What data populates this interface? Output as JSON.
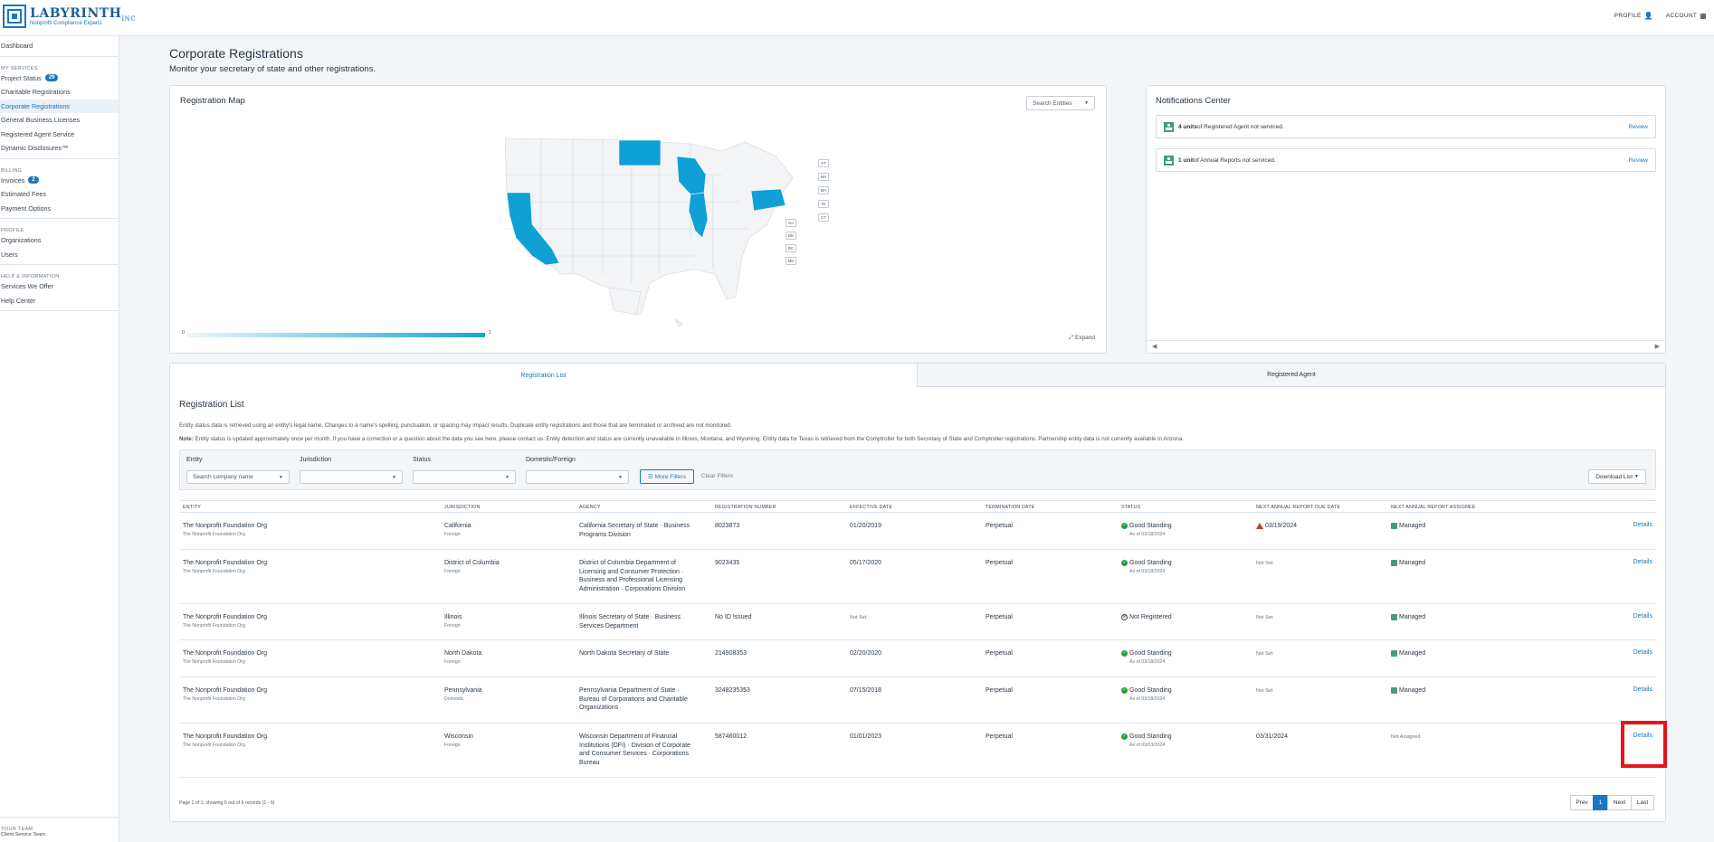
{
  "brand": {
    "name": "LABYRINTH",
    "suffix": "INC",
    "tagline": "Nonprofit Compliance Experts"
  },
  "topnav": {
    "profile": "PROFILE",
    "account": "ACCOUNT"
  },
  "sidebar": {
    "dashboard": "Dashboard",
    "my_services_label": "MY SERVICES",
    "services": [
      {
        "label": "Project Status",
        "badge": "29"
      },
      {
        "label": "Charitable Registrations"
      },
      {
        "label": "Corporate Registrations"
      },
      {
        "label": "General Business Licenses"
      },
      {
        "label": "Registered Agent Service"
      },
      {
        "label": "Dynamic Disclosures™"
      }
    ],
    "billing_label": "BILLING",
    "billing": [
      {
        "label": "Invoices",
        "badge": "2"
      },
      {
        "label": "Estimated Fees"
      },
      {
        "label": "Payment Options"
      }
    ],
    "profile_label": "PROFILE",
    "profile": [
      "Organizations",
      "Users"
    ],
    "help_label": "HELP & INFORMATION",
    "help": [
      "Services We Offer",
      "Help Center"
    ],
    "team_label": "YOUR TEAM",
    "team": "Client Service Team"
  },
  "page": {
    "title": "Corporate Registrations",
    "subtitle": "Monitor your secretary of state and other registrations."
  },
  "map": {
    "title": "Registration Map",
    "search_placeholder": "Search Entities",
    "highlighted_states": [
      "ND",
      "WI",
      "IL",
      "PA",
      "CA"
    ],
    "small_states_right": [
      "VT",
      "NH",
      "MA",
      "RI",
      "CT"
    ],
    "small_states_left": [
      "NJ",
      "DE",
      "DC",
      "MD"
    ],
    "scale_min": "0",
    "scale_max": "1",
    "expand": "Expand",
    "highlight_color": "#0fa0d6"
  },
  "notifications": {
    "title": "Notifications Center",
    "items": [
      {
        "strong": "4 units",
        "text": " of Registered Agent not serviced.",
        "action": "Review"
      },
      {
        "strong": "1 unit",
        "text": " of Annual Reports not serviced.",
        "action": "Review"
      }
    ]
  },
  "tabs": {
    "list": "Registration List",
    "agent": "Registered Agent"
  },
  "list": {
    "title": "Registration List",
    "info1": "Entity status data is retrieved using an entity's legal name. Changes to a name's spelling, punctuation, or spacing may impact results. Duplicate entity registrations and those that are terminated or archived are not monitored.",
    "note_label": "Note:",
    "info2": " Entity status is updated approximately once per month. If you have a correction or a question about the data you see here, please contact us. Entity detection and status are currently unavailable in Illinois, Montana, and Wyoming. Entity data for Texas is retrieved from the Comptroller for both Secretary of State and Comptroller registrations. Partnership entity data is not currently available in Arizona."
  },
  "filters": {
    "entity_label": "Entity",
    "entity_placeholder": "Search company name",
    "jurisdiction_label": "Jurisdiction",
    "status_label": "Status",
    "domestic_label": "Domestic/Foreign",
    "more": "More Filters",
    "clear": "Clear Filters",
    "download": "Download List"
  },
  "table": {
    "headers": [
      "ENTITY",
      "JURISDICTION",
      "AGENCY",
      "REGISTRATION NUMBER",
      "EFFECTIVE DATE",
      "TERMINATION DATE",
      "STATUS",
      "NEXT ANNUAL REPORT DUE DATE",
      "NEXT ANNUAL REPORT ASSIGNEE"
    ],
    "details_label": "Details",
    "rows": [
      {
        "entity": "The Nonprofit Foundation Org",
        "entity_sub": "The Nonprofit Foundation Org",
        "jurisdiction": "California",
        "type": "Foreign",
        "agency": [
          "California Secretary of State · Business",
          "Programs Division"
        ],
        "reg": "8023873",
        "effective": "01/20/2019",
        "termination": "Perpetual",
        "status": "Good Standing",
        "status_sub": "As of 03/18/2024",
        "due": "03/19/2024",
        "due_warn": true,
        "assignee": "Managed"
      },
      {
        "entity": "The Nonprofit Foundation Org",
        "entity_sub": "The Nonprofit Foundation Org",
        "jurisdiction": "District of Columbia",
        "type": "Foreign",
        "agency": [
          "District of Columbia Department of",
          "Licensing and Consumer Protection ·",
          "Business and Professional Licensing",
          "Administration · Corporations Division"
        ],
        "reg": "9023435",
        "effective": "05/17/2020",
        "termination": "Perpetual",
        "status": "Good Standing",
        "status_sub": "As of 03/18/2024",
        "due": "Not Set",
        "assignee": "Managed"
      },
      {
        "entity": "The Nonprofit Foundation Org",
        "entity_sub": "The Nonprofit Foundation Org",
        "jurisdiction": "Illinois",
        "type": "Foreign",
        "agency": [
          "Illinois Secretary of State · Business",
          "Services Department"
        ],
        "reg": "No ID Issued",
        "effective": "Not Set",
        "termination": "Perpetual",
        "status": "Not Registered",
        "status_sub": "",
        "due": "Not Set",
        "assignee": "Managed"
      },
      {
        "entity": "The Nonprofit Foundation Org",
        "entity_sub": "The Nonprofit Foundation Org",
        "jurisdiction": "North Dakota",
        "type": "Foreign",
        "agency": [
          "North Dakota Secretary of State"
        ],
        "reg": "214908353",
        "effective": "02/20/2020",
        "termination": "Perpetual",
        "status": "Good Standing",
        "status_sub": "As of 03/18/2024",
        "due": "Not Set",
        "assignee": "Managed"
      },
      {
        "entity": "The Nonprofit Foundation Org",
        "entity_sub": "The Nonprofit Foundation Org",
        "jurisdiction": "Pennsylvania",
        "type": "Domestic",
        "agency": [
          "Pennsylvania Department of State ·",
          "Bureau of Corporations and Charitable",
          "Organizations"
        ],
        "reg": "3248235353",
        "effective": "07/15/2018",
        "termination": "Perpetual",
        "status": "Good Standing",
        "status_sub": "As of 03/18/2024",
        "due": "Not Set",
        "assignee": "Managed"
      },
      {
        "entity": "The Nonprofit Foundation Org",
        "entity_sub": "The Nonprofit Foundation Org",
        "jurisdiction": "Wisconsin",
        "type": "Foreign",
        "agency": [
          "Wisconsin Department of Financial",
          "Institutions (DFI) · Division of Corporate",
          "and Consumer Services · Corporations",
          "Bureau"
        ],
        "reg": "587460012",
        "effective": "01/01/2023",
        "termination": "Perpetual",
        "status": "Good Standing",
        "status_sub": "As of 03/23/2024",
        "due": "03/31/2024",
        "assignee": "Not Assigned"
      }
    ]
  },
  "pagination": {
    "info": "Page 1 of 1, showing 6 out of 6 records (1 - 6)",
    "prev": "Prev",
    "current": "1",
    "next": "Next",
    "last": "Last"
  }
}
